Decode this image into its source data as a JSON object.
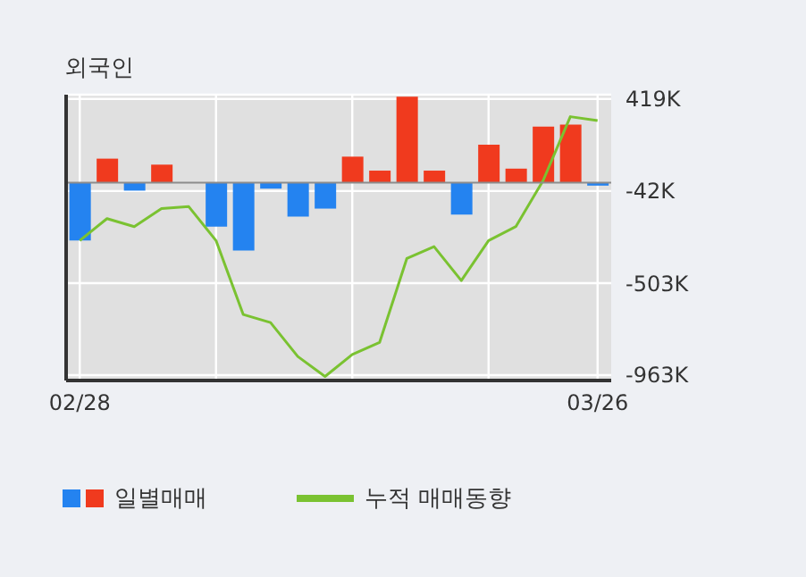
{
  "chart_data": {
    "type": "bar",
    "title": "외국인",
    "categories": [
      "02/28",
      null,
      null,
      null,
      null,
      null,
      null,
      null,
      null,
      null,
      null,
      null,
      null,
      null,
      null,
      null,
      null,
      null,
      null,
      "03/26"
    ],
    "series": [
      {
        "name": "일별매매",
        "values": [
          -290,
          120,
          -40,
          90,
          0,
          -220,
          -340,
          -30,
          -170,
          -130,
          130,
          60,
          430,
          60,
          -160,
          190,
          70,
          280,
          290,
          -15
        ],
        "colors": [
          "#2483f0",
          "#f03a1e",
          "#2483f0",
          "#f03a1e",
          "#f03a1e",
          "#2483f0",
          "#2483f0",
          "#2483f0",
          "#2483f0",
          "#2483f0",
          "#f03a1e",
          "#f03a1e",
          "#f03a1e",
          "#f03a1e",
          "#2483f0",
          "#f03a1e",
          "#f03a1e",
          "#f03a1e",
          "#f03a1e",
          "#2483f0"
        ]
      },
      {
        "name": "누적 매매동향",
        "type": "line",
        "color": "#7ac231",
        "values": [
          -290,
          -180,
          -220,
          -130,
          -120,
          -290,
          -660,
          -700,
          -870,
          -970,
          -860,
          -800,
          -380,
          -320,
          -490,
          -290,
          -220,
          10,
          330,
          310
        ]
      }
    ],
    "ylim": [
      -990,
      440
    ],
    "yticks": [
      {
        "value": 419,
        "label": "419K"
      },
      {
        "value": -42,
        "label": "-42K"
      },
      {
        "value": -503,
        "label": "-503K"
      },
      {
        "value": -963,
        "label": "-963K"
      }
    ],
    "ref_lines": [
      {
        "axis": "y",
        "value": 0,
        "color": "#8c8c8c"
      }
    ],
    "grid": true,
    "legend": "bottom",
    "marker": "none"
  }
}
